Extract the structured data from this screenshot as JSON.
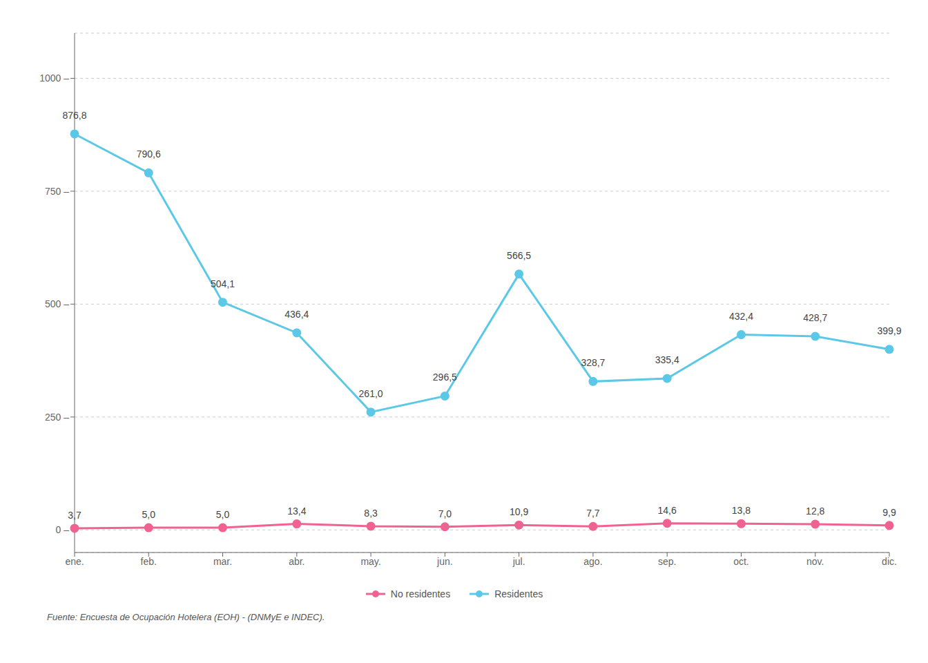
{
  "chart_data": {
    "type": "line",
    "categories": [
      "ene.",
      "feb.",
      "mar.",
      "abr.",
      "may.",
      "jun.",
      "jul.",
      "ago.",
      "sep.",
      "oct.",
      "nov.",
      "dic."
    ],
    "series": [
      {
        "name": "Residentes",
        "color": "#5bc8e8",
        "marker": "circle",
        "values": [
          876.8,
          790.6,
          504.1,
          436.4,
          261.0,
          296.5,
          566.5,
          328.7,
          335.4,
          432.4,
          428.7,
          399.9
        ],
        "value_labels": [
          "876,8",
          "790,6",
          "504,1",
          "436,4",
          "261,0",
          "296,5",
          "566,5",
          "328,7",
          "335,4",
          "432,4",
          "428,7",
          "399,9"
        ]
      },
      {
        "name": "No residentes",
        "color": "#f06292",
        "marker": "circle",
        "values": [
          3.7,
          5.0,
          5.0,
          13.4,
          8.3,
          7.0,
          10.9,
          7.7,
          14.6,
          13.8,
          12.8,
          9.9
        ],
        "value_labels": [
          "3,7",
          "5,0",
          "5,0",
          "13,4",
          "8,3",
          "7,0",
          "10,9",
          "7,7",
          "14,6",
          "13,8",
          "12,8",
          "9,9"
        ]
      }
    ],
    "ylim": [
      -50,
      1100
    ],
    "yticks": [
      {
        "value": 0,
        "label": "0 –"
      },
      {
        "value": 250,
        "label": "250 –"
      },
      {
        "value": 500,
        "label": "500 –"
      },
      {
        "value": 750,
        "label": "750 –"
      },
      {
        "value": 1000,
        "label": "1000 –"
      }
    ],
    "grid": true,
    "legend": "bottom",
    "data_labels": true,
    "annotations": [
      "Fuente: Encuesta de Ocupación Hotelera (EOH) - (DNMyE e INDEC)."
    ]
  }
}
